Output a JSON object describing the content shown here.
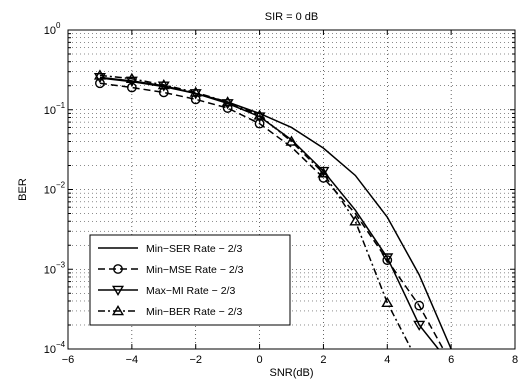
{
  "chart_data": {
    "type": "line",
    "title": "SIR = 0 dB",
    "xlabel": "SNR(dB)",
    "ylabel": "BER",
    "xlim": [
      -6,
      8
    ],
    "ylim": [
      0.0001,
      1
    ],
    "yscale": "log",
    "grid": true,
    "grid_style": "dotted",
    "legend_position": "bottom-left",
    "x_ticks": [
      -6,
      -4,
      -2,
      0,
      2,
      4,
      6,
      8
    ],
    "x_tick_labels": [
      "−6",
      "−4",
      "−2",
      "0",
      "2",
      "4",
      "6",
      "8"
    ],
    "y_ticks": [
      0.0001,
      0.001,
      0.01,
      0.1,
      1
    ],
    "y_tick_labels": [
      {
        "base": "10",
        "exp": "−4"
      },
      {
        "base": "10",
        "exp": "−3"
      },
      {
        "base": "10",
        "exp": "−2"
      },
      {
        "base": "10",
        "exp": "−1"
      },
      {
        "base": "10",
        "exp": "0"
      }
    ],
    "series": [
      {
        "name": "Min−SER Rate − 2/3",
        "dash": "solid",
        "marker": "none",
        "x": [
          -5,
          -4,
          -3,
          -2,
          -1,
          0,
          1,
          2,
          3,
          4,
          5,
          6
        ],
        "y": [
          0.25,
          0.225,
          0.195,
          0.16,
          0.125,
          0.09,
          0.06,
          0.033,
          0.015,
          0.0045,
          0.00085,
          0.0001
        ],
        "markers_x": [],
        "markers_y": []
      },
      {
        "name": "Min−MSE Rate − 2/3",
        "dash": "dashed",
        "marker": "circle",
        "x": [
          -5,
          -4,
          -3,
          -2,
          -1,
          0,
          1,
          2,
          3,
          4,
          5,
          5.75
        ],
        "y": [
          0.215,
          0.19,
          0.165,
          0.135,
          0.105,
          0.067,
          0.034,
          0.014,
          0.005,
          0.0013,
          0.00035,
          0.0001
        ],
        "markers_x": [
          -5,
          -4,
          -3,
          -2,
          -1,
          0,
          2,
          4,
          5
        ],
        "markers_y": [
          0.215,
          0.19,
          0.165,
          0.135,
          0.105,
          0.067,
          0.014,
          0.0013,
          0.00035
        ]
      },
      {
        "name": "Max−MI Rate − 2/3",
        "dash": "solid",
        "marker": "triangle-down",
        "x": [
          -5,
          -4,
          -3,
          -2,
          -1,
          0,
          1,
          2,
          3,
          4,
          5,
          5.6
        ],
        "y": [
          0.255,
          0.23,
          0.2,
          0.16,
          0.12,
          0.082,
          0.042,
          0.017,
          0.0055,
          0.0014,
          0.0002,
          0.0001
        ],
        "markers_x": [
          -5,
          -4,
          -3,
          -2,
          -1,
          0,
          2,
          4,
          5
        ],
        "markers_y": [
          0.255,
          0.23,
          0.2,
          0.16,
          0.12,
          0.082,
          0.017,
          0.0014,
          0.0002
        ]
      },
      {
        "name": "Min−BER Rate − 2/3",
        "dash": "dashdot",
        "marker": "triangle-up",
        "x": [
          -5,
          -4,
          -3,
          -2,
          -1,
          0,
          1,
          2,
          3,
          4,
          4.75
        ],
        "y": [
          0.27,
          0.245,
          0.205,
          0.165,
          0.125,
          0.085,
          0.04,
          0.016,
          0.004,
          0.00038,
          0.0001
        ],
        "markers_x": [
          -5,
          -4,
          -3,
          -2,
          -1,
          0,
          1,
          2,
          3,
          4
        ],
        "markers_y": [
          0.27,
          0.245,
          0.205,
          0.165,
          0.125,
          0.085,
          0.04,
          0.016,
          0.004,
          0.00038
        ]
      }
    ]
  }
}
